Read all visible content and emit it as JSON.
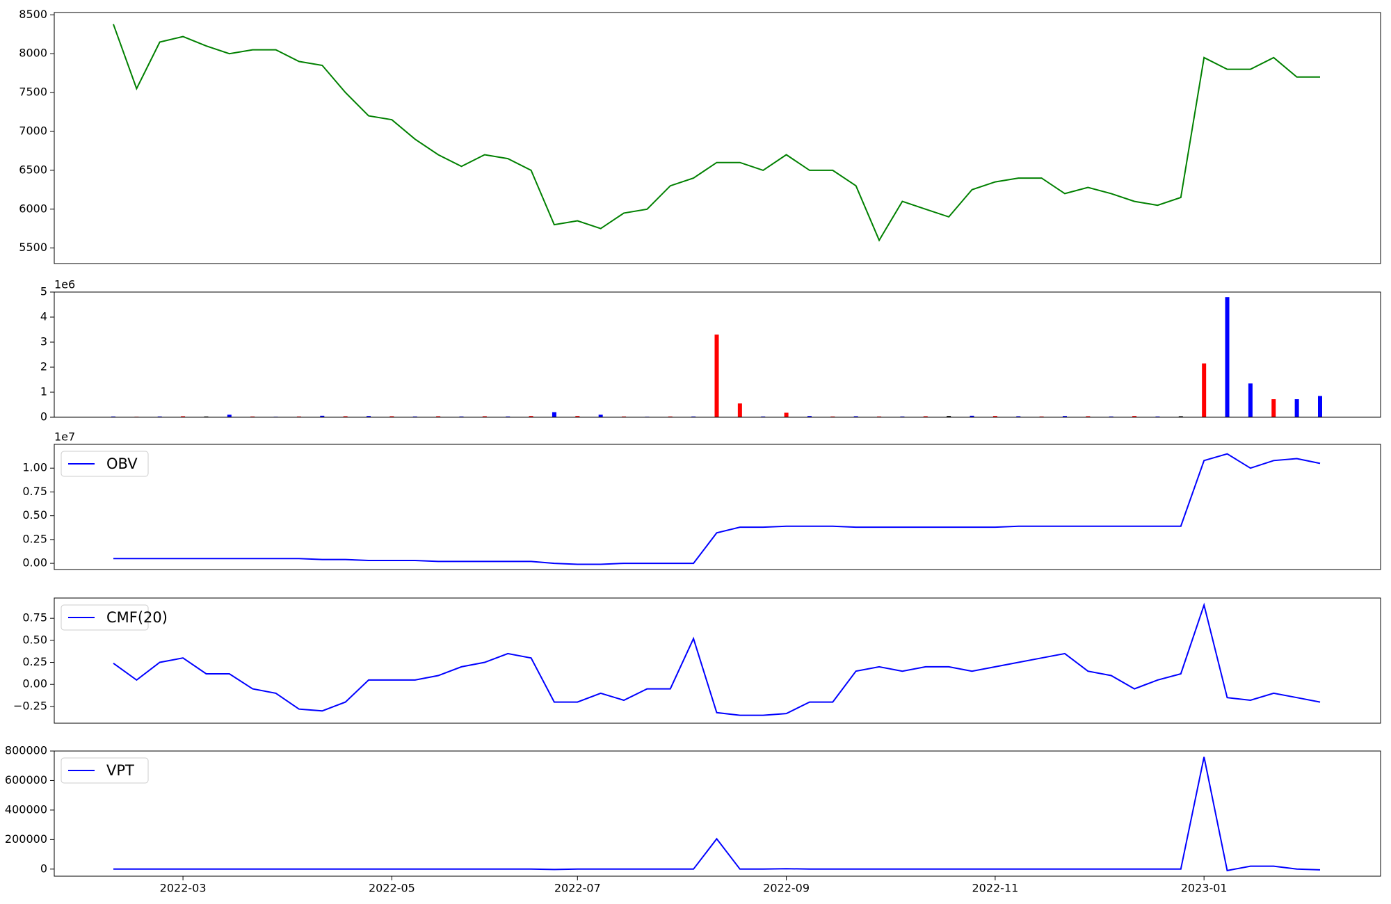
{
  "chart_data": [
    {
      "type": "line",
      "series": [
        {
          "color": "#008000",
          "values": [
            8380,
            7550,
            8150,
            8220,
            8100,
            8000,
            8050,
            8050,
            7900,
            7850,
            7500,
            7200,
            7150,
            6900,
            6700,
            6550,
            6700,
            6650,
            6500,
            5800,
            5850,
            5750,
            5950,
            6000,
            6300,
            6400,
            6600,
            6600,
            6500,
            6700,
            6500,
            6500,
            6300,
            5600,
            6100,
            6000,
            5900,
            6250,
            6350,
            6400,
            6400,
            6200,
            6280,
            6200,
            6100,
            6050,
            6150,
            7950,
            7800,
            7800,
            7950,
            7700,
            7700
          ]
        }
      ],
      "ylim": [
        5300,
        8530
      ],
      "yticks": [
        5500,
        6000,
        6500,
        7000,
        7500,
        8000,
        8500
      ]
    },
    {
      "type": "bar",
      "offset_label": "1e6",
      "values": [
        0.03,
        0.02,
        0.03,
        0.04,
        0.03,
        0.1,
        0.03,
        0.02,
        0.03,
        0.06,
        0.04,
        0.05,
        0.04,
        0.03,
        0.04,
        0.03,
        0.04,
        0.03,
        0.05,
        0.2,
        0.05,
        0.1,
        0.03,
        0.02,
        0.03,
        0.03,
        3.3,
        0.55,
        0.03,
        0.18,
        0.05,
        0.03,
        0.04,
        0.03,
        0.03,
        0.04,
        0.05,
        0.06,
        0.05,
        0.04,
        0.03,
        0.05,
        0.04,
        0.03,
        0.05,
        0.03,
        0.04,
        2.15,
        4.8,
        1.35,
        0.72,
        0.72,
        0.85
      ],
      "colors": [
        "#0000ff",
        "#ff0000",
        "#0000ff",
        "#ff0000",
        "#000000",
        "#0000ff",
        "#ff0000",
        "#0000ff",
        "#ff0000",
        "#0000ff",
        "#ff0000",
        "#0000ff",
        "#ff0000",
        "#0000ff",
        "#ff0000",
        "#0000ff",
        "#ff0000",
        "#0000ff",
        "#ff0000",
        "#0000ff",
        "#ff0000",
        "#0000ff",
        "#ff0000",
        "#0000ff",
        "#ff0000",
        "#0000ff",
        "#ff0000",
        "#ff0000",
        "#0000ff",
        "#ff0000",
        "#0000ff",
        "#ff0000",
        "#0000ff",
        "#ff0000",
        "#0000ff",
        "#ff0000",
        "#000000",
        "#0000ff",
        "#ff0000",
        "#0000ff",
        "#ff0000",
        "#0000ff",
        "#ff0000",
        "#0000ff",
        "#ff0000",
        "#0000ff",
        "#000000",
        "#ff0000",
        "#0000ff",
        "#0000ff",
        "#ff0000",
        "#0000ff",
        "#0000ff"
      ],
      "ylim": [
        0,
        5
      ],
      "yticks": [
        0,
        1,
        2,
        3,
        4,
        5
      ]
    },
    {
      "type": "line",
      "offset_label": "1e7",
      "series": [
        {
          "name": "OBV",
          "color": "#0000ff",
          "values": [
            0.05,
            0.05,
            0.05,
            0.05,
            0.05,
            0.05,
            0.05,
            0.05,
            0.05,
            0.04,
            0.04,
            0.03,
            0.03,
            0.03,
            0.02,
            0.02,
            0.02,
            0.02,
            0.02,
            0.0,
            -0.01,
            -0.01,
            0.0,
            0.0,
            0.0,
            0.0,
            0.32,
            0.38,
            0.38,
            0.39,
            0.39,
            0.39,
            0.38,
            0.38,
            0.38,
            0.38,
            0.38,
            0.38,
            0.38,
            0.39,
            0.39,
            0.39,
            0.39,
            0.39,
            0.39,
            0.39,
            0.39,
            1.08,
            1.15,
            1.0,
            1.08,
            1.1,
            1.05
          ]
        }
      ],
      "ylim": [
        -0.065,
        1.25
      ],
      "yticks": [
        {
          "value": 0,
          "label": "0.00"
        },
        {
          "value": 0.25,
          "label": "0.25"
        },
        {
          "value": 0.5,
          "label": "0.50"
        },
        {
          "value": 0.75,
          "label": "0.75"
        },
        {
          "value": 1,
          "label": "1.00"
        }
      ]
    },
    {
      "type": "line",
      "series": [
        {
          "name": "CMF(20)",
          "color": "#0000ff",
          "values": [
            0.24,
            0.05,
            0.25,
            0.3,
            0.12,
            0.12,
            -0.05,
            -0.1,
            -0.28,
            -0.3,
            -0.2,
            0.05,
            0.05,
            0.05,
            0.1,
            0.2,
            0.25,
            0.35,
            0.3,
            -0.2,
            -0.2,
            -0.1,
            -0.18,
            -0.05,
            -0.05,
            0.52,
            -0.32,
            -0.35,
            -0.35,
            -0.33,
            -0.2,
            -0.2,
            0.15,
            0.2,
            0.15,
            0.2,
            0.2,
            0.15,
            0.2,
            0.25,
            0.3,
            0.35,
            0.15,
            0.1,
            -0.05,
            0.05,
            0.12,
            0.9,
            -0.15,
            -0.18,
            -0.1,
            -0.15,
            -0.2
          ]
        }
      ],
      "ylim": [
        -0.44,
        0.98
      ],
      "yticks": [
        {
          "value": -0.25,
          "label": "−0.25"
        },
        {
          "value": 0,
          "label": "0.00"
        },
        {
          "value": 0.25,
          "label": "0.25"
        },
        {
          "value": 0.5,
          "label": "0.50"
        },
        {
          "value": 0.75,
          "label": "0.75"
        }
      ]
    },
    {
      "type": "line",
      "series": [
        {
          "name": "VPT",
          "color": "#0000ff",
          "values": [
            0,
            0,
            0,
            0,
            0,
            0,
            0,
            0,
            0,
            0,
            0,
            0,
            0,
            0,
            0,
            0,
            0,
            0,
            0,
            -3000,
            0,
            0,
            0,
            0,
            0,
            0,
            205000,
            0,
            0,
            3000,
            0,
            0,
            0,
            0,
            0,
            0,
            0,
            0,
            0,
            0,
            0,
            0,
            0,
            0,
            0,
            0,
            0,
            760000,
            -10000,
            20000,
            20000,
            0,
            -5000
          ]
        }
      ],
      "ylim": [
        -48000,
        800000
      ],
      "yticks": [
        0,
        200000,
        400000,
        600000,
        800000
      ],
      "categories": [
        null,
        null,
        null,
        "2022-03",
        null,
        null,
        null,
        null,
        null,
        null,
        null,
        null,
        "2022-05",
        null,
        null,
        null,
        null,
        null,
        null,
        null,
        "2022-07",
        null,
        null,
        null,
        null,
        null,
        null,
        null,
        null,
        "2022-09",
        null,
        null,
        null,
        null,
        null,
        null,
        null,
        null,
        "2022-11",
        null,
        null,
        null,
        null,
        null,
        null,
        null,
        null,
        "2023-01",
        null,
        null,
        null,
        null,
        null
      ]
    }
  ]
}
